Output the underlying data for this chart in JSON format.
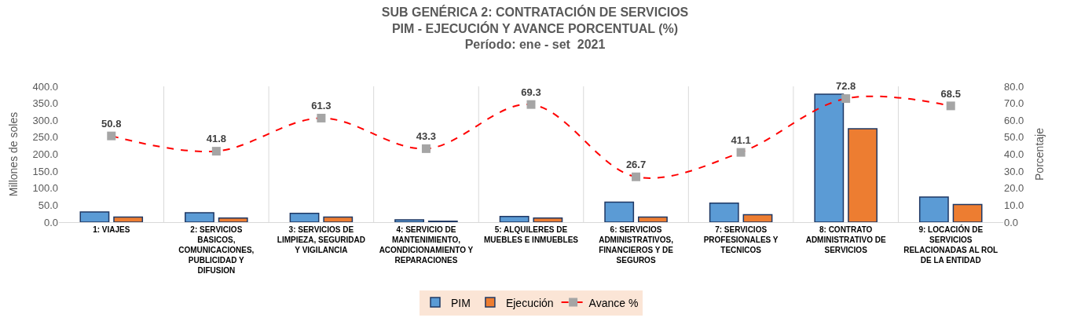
{
  "chart_data": {
    "type": "bar",
    "title": "SUB GENÉRICA 2: CONTRATACIÓN DE SERVICIOS",
    "subtitle": "PIM - EJECUCIÓN Y AVANCE PORCENTUAL (%)\nPeríodo: ene - set  2021",
    "ylabel": "Millones de soles",
    "y2label": "Porcentaje",
    "categories": [
      "1: VIAJES",
      "2: SERVICIOS BASICOS, COMUNICACIONES, PUBLICIDAD Y DIFUSION",
      "3: SERVICIOS DE LIMPIEZA, SEGURIDAD Y VIGILANCIA",
      "4: SERVICIO DE MANTENIMIENTO, ACONDICIONAMIENTO Y REPARACIONES",
      "5: ALQUILERES DE MUEBLES E INMUEBLES",
      "6: SERVICIOS ADMINISTRATIVOS, FINANCIEROS Y DE SEGUROS",
      "7: SERVICIOS PROFESIONALES Y TECNICOS",
      "8: CONTRATO ADMINISTRATIVO DE SERVICIOS",
      "9: LOCACIÓN DE SERVICIOS RELACIONADAS AL ROL DE LA ENTIDAD"
    ],
    "series": [
      {
        "name": "PIM",
        "color": "#5b9bd5",
        "values": [
          30,
          28,
          26,
          7,
          17,
          59,
          56,
          377,
          74
        ]
      },
      {
        "name": "Ejecución",
        "color": "#ed7d31",
        "values": [
          15,
          12,
          15,
          3,
          12,
          15,
          22,
          275,
          52
        ]
      },
      {
        "name": "Avance %",
        "type": "line",
        "axis": "y2",
        "color": "#ff0000",
        "marker": "square",
        "line_style": "dashed",
        "values": [
          50.8,
          41.8,
          61.3,
          43.3,
          69.3,
          26.7,
          41.1,
          72.8,
          68.5
        ],
        "value_labels": [
          "50.8",
          "41.8",
          "61.3",
          "43.3",
          "69.3",
          "26.7",
          "41.1",
          "72.8",
          "68.5"
        ]
      }
    ],
    "ylim": [
      0,
      400
    ],
    "yticks": [
      {
        "value": 0,
        "label": "0.0"
      },
      {
        "value": 50,
        "label": "50.0"
      },
      {
        "value": 100,
        "label": "100.0"
      },
      {
        "value": 150,
        "label": "150.0"
      },
      {
        "value": 200,
        "label": "200.0"
      },
      {
        "value": 250,
        "label": "250.0"
      },
      {
        "value": 300,
        "label": "300.0"
      },
      {
        "value": 350,
        "label": "350.0"
      },
      {
        "value": 400,
        "label": "400.0"
      }
    ],
    "y2lim": [
      0,
      80
    ],
    "y2ticks": [
      {
        "value": 0,
        "label": "0.0"
      },
      {
        "value": 10,
        "label": "10.0"
      },
      {
        "value": 20,
        "label": "20.0"
      },
      {
        "value": 30,
        "label": "30.0"
      },
      {
        "value": 40,
        "label": "40.0"
      },
      {
        "value": 50,
        "label": "50.0"
      },
      {
        "value": 60,
        "label": "60.0"
      },
      {
        "value": 70,
        "label": "70.0"
      },
      {
        "value": 80,
        "label": "80.0"
      }
    ],
    "grid": "x",
    "legend": "bottom"
  }
}
